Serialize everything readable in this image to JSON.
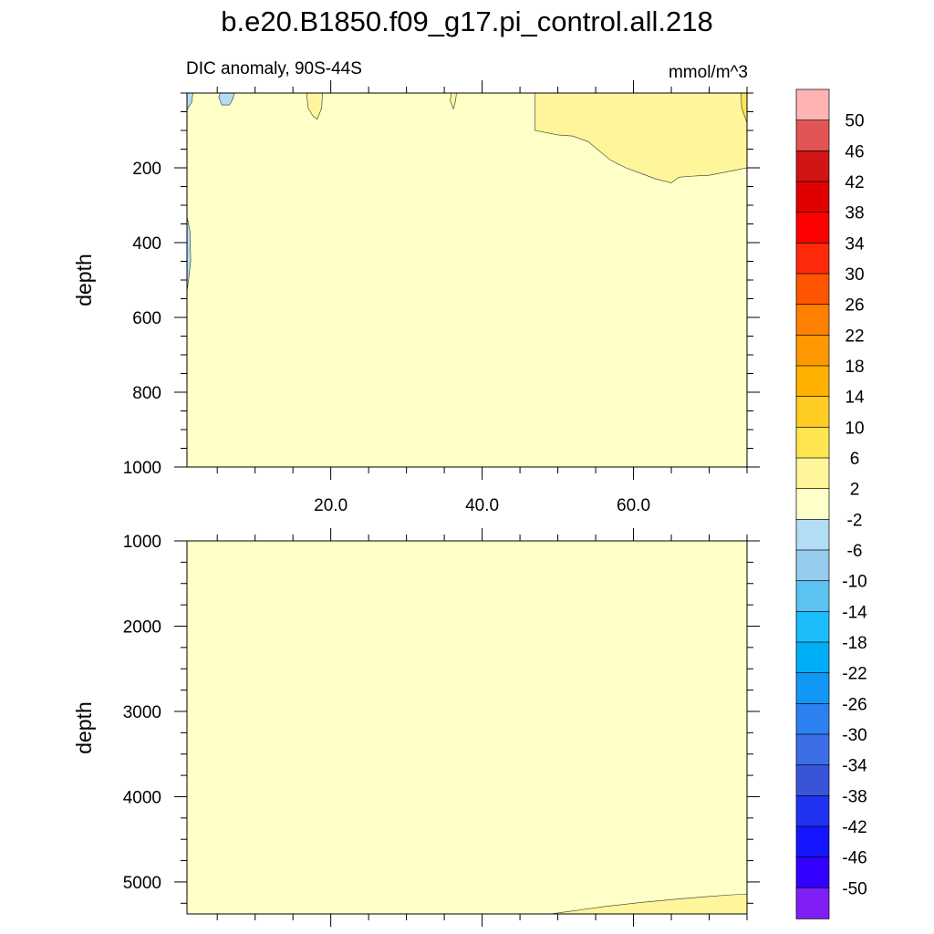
{
  "title": "b.e20.B1850.f09_g17.pi_control.all.218",
  "chart_data": [
    {
      "type": "contour",
      "panel": "upper",
      "left_string": "DIC anomaly, 90S-44S",
      "right_string": "mmol/m^3",
      "ylabel": "depth",
      "y_reversed": true,
      "xlim": [
        1,
        75
      ],
      "ylim": [
        0,
        1000
      ],
      "x_ticks": [
        20,
        40,
        60
      ],
      "x_tick_labels": [
        "20.0",
        "40.0",
        "60.0"
      ],
      "y_ticks": [
        200,
        400,
        600,
        800,
        1000
      ],
      "y_tick_labels": [
        "200",
        "400",
        "600",
        "800",
        "1000"
      ],
      "background_level": "-2 to 2",
      "regions": [
        {
          "level": "2 to 6",
          "desc": "upper right, x 47-75, depth 0-250",
          "polygon": [
            [
              47,
              0
            ],
            [
              75,
              0
            ],
            [
              75,
              200
            ],
            [
              73,
              208
            ],
            [
              70,
              220
            ],
            [
              68,
              222
            ],
            [
              66,
              225
            ],
            [
              65,
              240
            ],
            [
              63,
              230
            ],
            [
              61,
              215
            ],
            [
              59,
              200
            ],
            [
              57,
              180
            ],
            [
              54,
              130
            ],
            [
              52,
              115
            ],
            [
              50,
              112
            ],
            [
              47,
              100
            ]
          ]
        },
        {
          "level": "2 to 6",
          "desc": "thin tongue near x 18",
          "polygon": [
            [
              16.8,
              0
            ],
            [
              18.9,
              0
            ],
            [
              18.8,
              40
            ],
            [
              18.2,
              70
            ],
            [
              17.6,
              60
            ],
            [
              17.0,
              40
            ]
          ]
        },
        {
          "level": "2 to 6",
          "desc": "small sliver near x 36",
          "polygon": [
            [
              35.9,
              0
            ],
            [
              36.6,
              0
            ],
            [
              36.5,
              20
            ],
            [
              36.2,
              42
            ],
            [
              35.8,
              22
            ]
          ]
        },
        {
          "level": "6 to 10",
          "desc": "corner at x 75",
          "polygon": [
            [
              74.2,
              0
            ],
            [
              75,
              0
            ],
            [
              75,
              80
            ],
            [
              74.3,
              40
            ]
          ]
        },
        {
          "level": "-6 to -2",
          "desc": "surface near x 1",
          "polygon": [
            [
              1,
              0
            ],
            [
              1.8,
              0
            ],
            [
              1.6,
              25
            ],
            [
              1,
              45
            ]
          ]
        },
        {
          "level": "-6 to -2",
          "desc": "surface patch near x 6",
          "polygon": [
            [
              5.4,
              0
            ],
            [
              7.3,
              0
            ],
            [
              7.0,
              18
            ],
            [
              6.6,
              32
            ],
            [
              5.6,
              32
            ],
            [
              5.2,
              12
            ]
          ]
        },
        {
          "level": "-6 to -2",
          "desc": "thin sliver along left edge",
          "polygon": [
            [
              1,
              330
            ],
            [
              1.4,
              370
            ],
            [
              1.5,
              450
            ],
            [
              1.2,
              500
            ],
            [
              1,
              530
            ]
          ]
        }
      ]
    },
    {
      "type": "contour",
      "panel": "lower",
      "ylabel": "depth",
      "y_reversed": true,
      "xlim": [
        1,
        75
      ],
      "ylim": [
        1000,
        5375
      ],
      "y_ticks": [
        1000,
        2000,
        3000,
        4000,
        5000
      ],
      "y_tick_labels": [
        "1000",
        "2000",
        "3000",
        "4000",
        "5000"
      ],
      "background_level": "-2 to 2",
      "regions": [
        {
          "level": "2 to 6",
          "desc": "bottom right wedge",
          "polygon": [
            [
              49,
              5375
            ],
            [
              52,
              5340
            ],
            [
              56,
              5290
            ],
            [
              61,
              5240
            ],
            [
              66,
              5200
            ],
            [
              70,
              5170
            ],
            [
              73,
              5150
            ],
            [
              75,
              5145
            ],
            [
              75,
              5375
            ]
          ]
        }
      ]
    }
  ],
  "colorbar": {
    "labels": [
      "50",
      "46",
      "42",
      "38",
      "34",
      "30",
      "26",
      "22",
      "18",
      "14",
      "10",
      "6",
      "2",
      "-2",
      "-6",
      "-10",
      "-14",
      "-18",
      "-22",
      "-26",
      "-30",
      "-34",
      "-38",
      "-42",
      "-46",
      "-50"
    ],
    "colors": [
      "#ffb3b3",
      "#e35454",
      "#d11414",
      "#e00000",
      "#ff0000",
      "#ff2a0a",
      "#ff5500",
      "#ff7f00",
      "#ff9800",
      "#ffb000",
      "#ffcc22",
      "#ffe650",
      "#fff59a",
      "#ffffc8",
      "#b3dcf5",
      "#96cced",
      "#5bc2f2",
      "#1abcfa",
      "#00aef7",
      "#1197f5",
      "#2c81f0",
      "#3c6ee6",
      "#3855d9",
      "#1f33f0",
      "#1515ff",
      "#3300ff",
      "#7f1ff5"
    ]
  }
}
